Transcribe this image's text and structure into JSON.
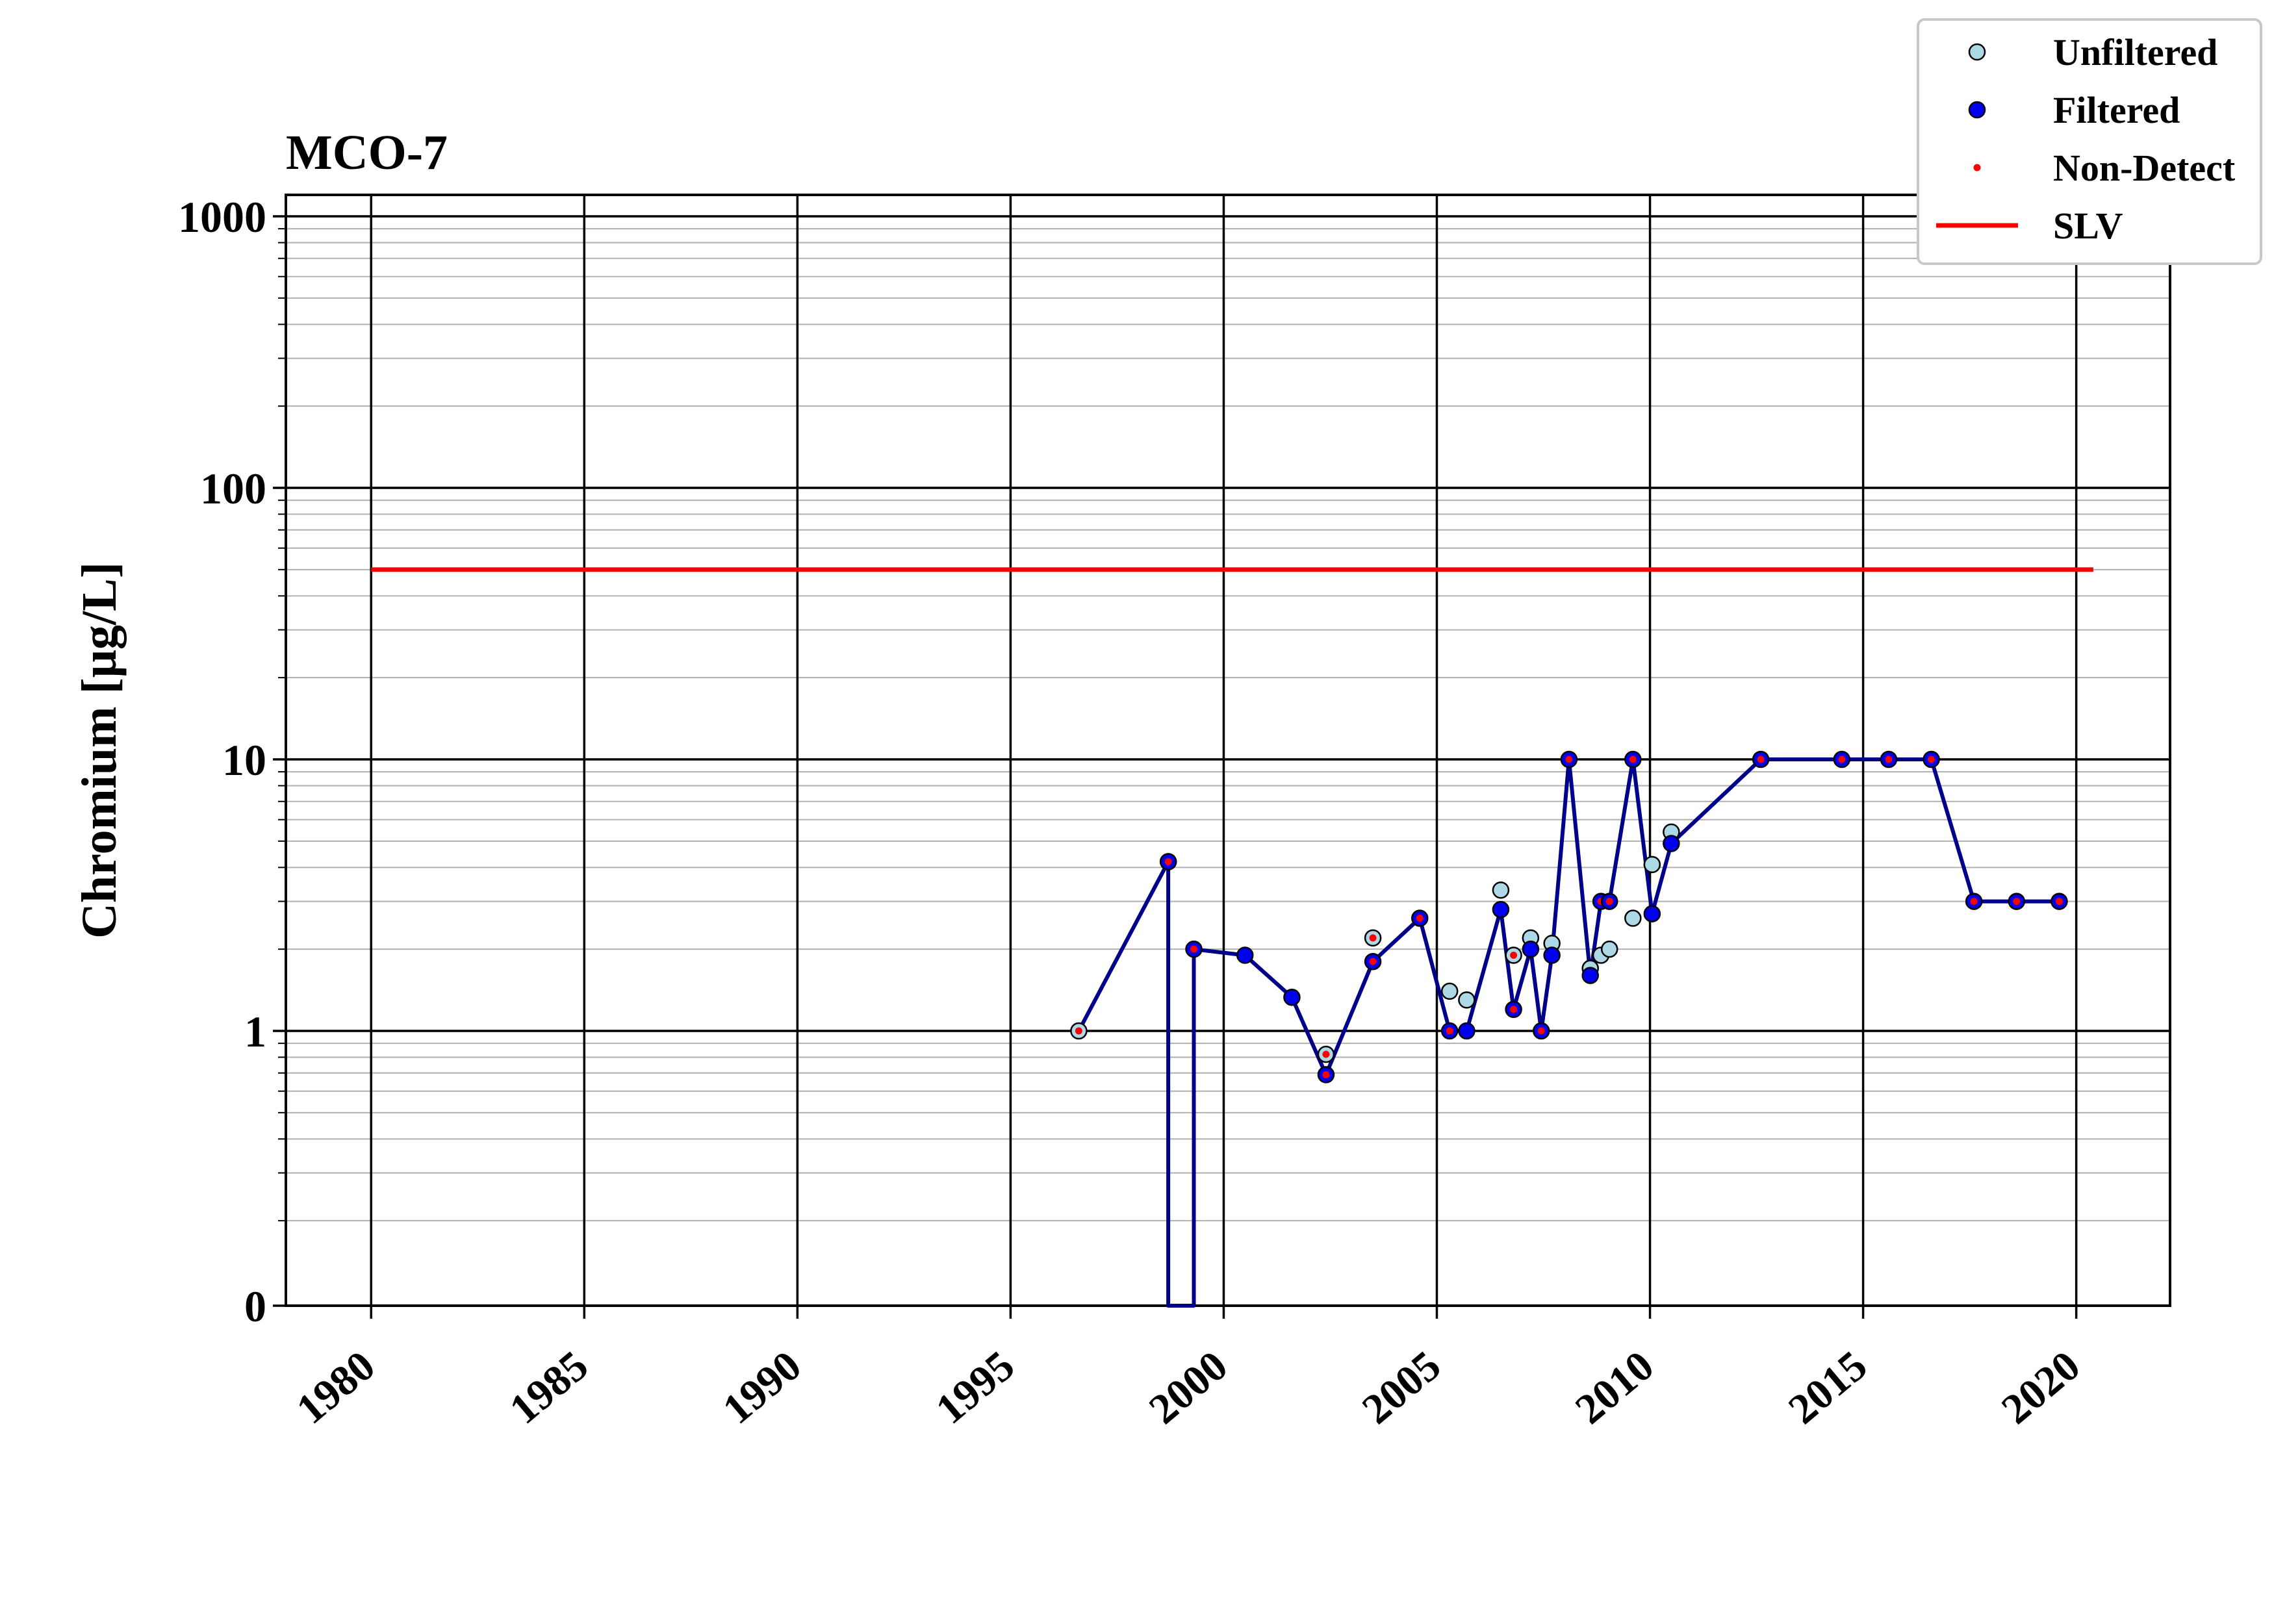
{
  "chart_data": {
    "type": "line",
    "title": "MCO-7",
    "xlabel": "",
    "ylabel": "Chromium [μg/L]",
    "yscale": "log",
    "ylim": [
      0,
      1000
    ],
    "xlim": [
      1978,
      2022.2
    ],
    "x_ticks": [
      1980,
      1985,
      1990,
      1995,
      2000,
      2005,
      2010,
      2015,
      2020
    ],
    "y_ticks": [
      {
        "value": 1000,
        "label": "1000"
      },
      {
        "value": 100,
        "label": "100"
      },
      {
        "value": 10,
        "label": "10"
      },
      {
        "value": 1,
        "label": "1"
      },
      {
        "value": 0,
        "label": "0"
      }
    ],
    "grid": true,
    "legend_position": "top-right",
    "colors": {
      "unfiltered": "#add8e6",
      "filtered": "#0000ee",
      "non_detect": "#ff0000",
      "slv": "#ff0000",
      "series_line": "#00008b"
    },
    "legend": [
      {
        "key": "unfiltered",
        "label": "Unfiltered"
      },
      {
        "key": "filtered",
        "label": "Filtered"
      },
      {
        "key": "non_detect",
        "label": "Non-Detect"
      },
      {
        "key": "slv",
        "label": "SLV"
      }
    ],
    "slv": {
      "name": "SLV",
      "value": 50,
      "x_range": [
        1980,
        2020.4
      ]
    },
    "series": [
      {
        "name": "Filtered",
        "points": [
          {
            "x": 1998.7,
            "y": 4.2,
            "nd": true
          },
          {
            "x": 1998.7,
            "y": 0
          },
          {
            "x": 1999.3,
            "y": 0
          },
          {
            "x": 1999.3,
            "y": 2.0,
            "nd": true
          },
          {
            "x": 2000.5,
            "y": 1.9
          },
          {
            "x": 2001.6,
            "y": 1.33
          },
          {
            "x": 2002.4,
            "y": 0.69,
            "nd": true
          },
          {
            "x": 2003.5,
            "y": 1.8,
            "nd": true
          },
          {
            "x": 2004.6,
            "y": 2.6,
            "nd": true
          },
          {
            "x": 2005.3,
            "y": 1.0,
            "nd": true
          },
          {
            "x": 2005.7,
            "y": 1.0
          },
          {
            "x": 2006.5,
            "y": 2.8
          },
          {
            "x": 2006.8,
            "y": 1.2,
            "nd": true
          },
          {
            "x": 2007.2,
            "y": 2.0
          },
          {
            "x": 2007.45,
            "y": 1.0,
            "nd": true
          },
          {
            "x": 2007.7,
            "y": 1.9
          },
          {
            "x": 2008.1,
            "y": 10,
            "nd": true
          },
          {
            "x": 2008.6,
            "y": 1.6
          },
          {
            "x": 2008.85,
            "y": 3.0,
            "nd": true
          },
          {
            "x": 2009.05,
            "y": 3.0,
            "nd": true
          },
          {
            "x": 2009.6,
            "y": 10,
            "nd": true
          },
          {
            "x": 2010.05,
            "y": 2.7
          },
          {
            "x": 2010.5,
            "y": 4.9
          },
          {
            "x": 2012.6,
            "y": 10,
            "nd": true
          },
          {
            "x": 2014.5,
            "y": 10,
            "nd": true
          },
          {
            "x": 2015.6,
            "y": 10,
            "nd": true
          },
          {
            "x": 2016.6,
            "y": 10,
            "nd": true
          },
          {
            "x": 2017.6,
            "y": 3.0,
            "nd": true
          },
          {
            "x": 2018.6,
            "y": 3.0,
            "nd": true
          },
          {
            "x": 2019.6,
            "y": 3.0,
            "nd": true
          }
        ]
      },
      {
        "name": "Unfiltered",
        "points": [
          {
            "x": 1996.6,
            "y": 1.0,
            "nd": true
          },
          {
            "x": 1998.7,
            "y": 4.2,
            "nd": true
          },
          {
            "x": 2002.4,
            "y": 0.82,
            "nd": true
          },
          {
            "x": 2003.5,
            "y": 2.2,
            "nd": true
          },
          {
            "x": 2005.3,
            "y": 1.4
          },
          {
            "x": 2005.7,
            "y": 1.3
          },
          {
            "x": 2006.5,
            "y": 3.3
          },
          {
            "x": 2006.8,
            "y": 1.9,
            "nd": true
          },
          {
            "x": 2007.2,
            "y": 2.2
          },
          {
            "x": 2007.7,
            "y": 2.1
          },
          {
            "x": 2008.6,
            "y": 1.7
          },
          {
            "x": 2008.85,
            "y": 1.9
          },
          {
            "x": 2009.05,
            "y": 2.0
          },
          {
            "x": 2009.6,
            "y": 2.6
          },
          {
            "x": 2010.05,
            "y": 4.1
          },
          {
            "x": 2010.5,
            "y": 5.4
          }
        ]
      }
    ]
  }
}
